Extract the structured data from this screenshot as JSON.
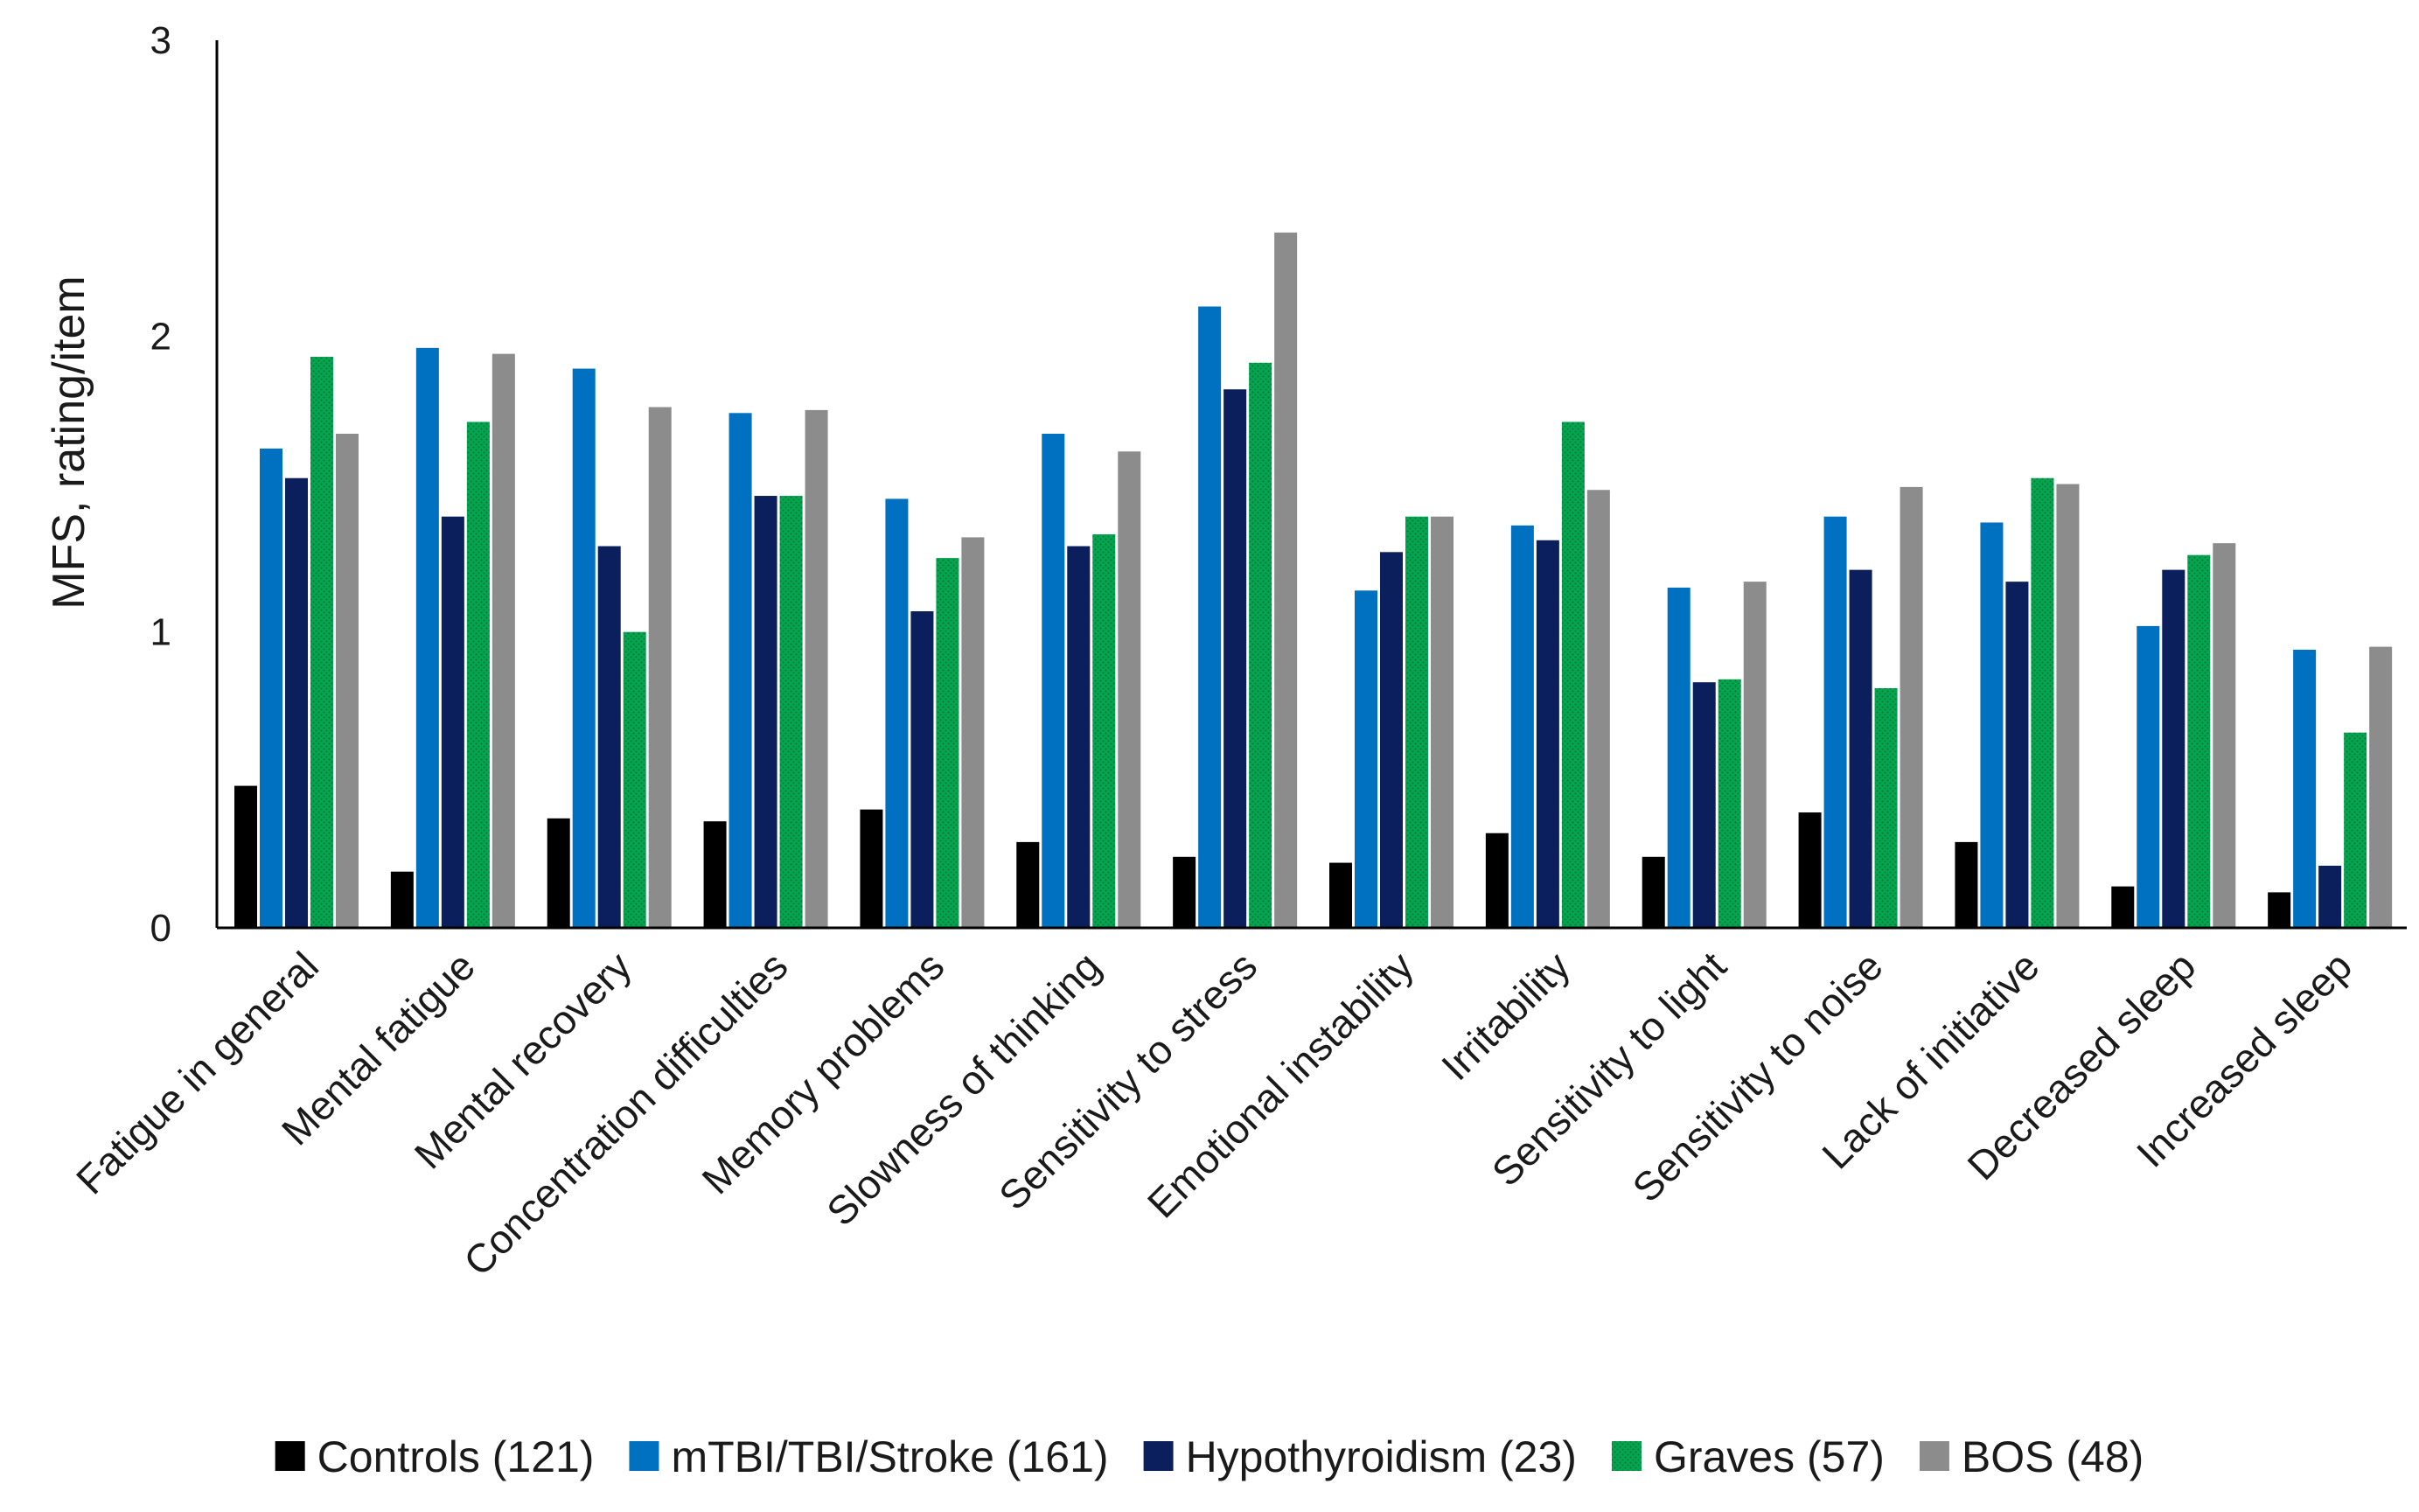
{
  "chart_data": {
    "type": "bar",
    "title": "",
    "xlabel": "",
    "ylabel": "MFS, rating/item",
    "ylim": [
      0,
      3
    ],
    "yticks": [
      0,
      1,
      2,
      3
    ],
    "grid": false,
    "legend_position": "bottom",
    "categories": [
      "Fatigue in general",
      "Mental fatigue",
      "Mental recovery",
      "Concentration difficulties",
      "Memory problems",
      "Slowness of thinking",
      "Sensitivity to stress",
      "Emotional instability",
      "Irritability",
      "Sensitivity to light",
      "Sensitivity to noise",
      "Lack of initiative",
      "Decreased sleep",
      "Increased sleep"
    ],
    "series": [
      {
        "name": "Controls (121)",
        "color": "#000000",
        "pattern": "solid",
        "values": [
          0.48,
          0.19,
          0.37,
          0.36,
          0.4,
          0.29,
          0.24,
          0.22,
          0.32,
          0.24,
          0.39,
          0.29,
          0.14,
          0.12
        ]
      },
      {
        "name": "mTBI/TBI/Stroke (161)",
        "color": "#0070c0",
        "pattern": "solid",
        "values": [
          1.62,
          1.96,
          1.89,
          1.74,
          1.45,
          1.67,
          2.1,
          1.14,
          1.36,
          1.15,
          1.39,
          1.37,
          1.02,
          0.94
        ]
      },
      {
        "name": "Hypothyroidism (23)",
        "color": "#0b1f5c",
        "pattern": "solid",
        "values": [
          1.52,
          1.39,
          1.29,
          1.46,
          1.07,
          1.29,
          1.82,
          1.27,
          1.31,
          0.83,
          1.21,
          1.17,
          1.21,
          0.21
        ]
      },
      {
        "name": "Graves (57)",
        "color": "#00a651",
        "pattern": "dotted",
        "values": [
          1.93,
          1.71,
          1.0,
          1.46,
          1.25,
          1.33,
          1.91,
          1.39,
          1.71,
          0.84,
          0.81,
          1.52,
          1.26,
          0.66
        ]
      },
      {
        "name": "BOS (48)",
        "color": "#8c8c8c",
        "pattern": "solid",
        "values": [
          1.67,
          1.94,
          1.76,
          1.75,
          1.32,
          1.61,
          2.35,
          1.39,
          1.48,
          1.17,
          1.49,
          1.5,
          1.3,
          0.95
        ]
      }
    ]
  }
}
